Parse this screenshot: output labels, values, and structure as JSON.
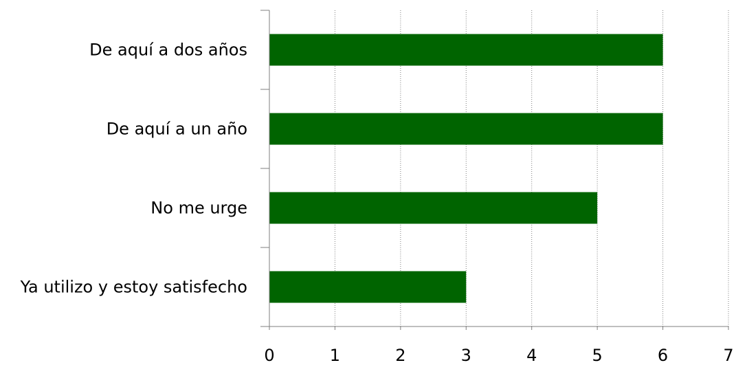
{
  "chart_data": {
    "type": "bar",
    "orientation": "horizontal",
    "categories": [
      "De aquí a dos años",
      "De aquí a un año",
      "No me urge",
      "Ya utilizo y estoy satisfecho"
    ],
    "values": [
      6,
      6,
      5,
      3
    ],
    "xlim": [
      0,
      7
    ],
    "x_ticks": [
      "0",
      "1",
      "2",
      "3",
      "4",
      "5",
      "6",
      "7"
    ],
    "grid": "vertical-dotted",
    "legend": "none",
    "bar_color": "#006400"
  }
}
